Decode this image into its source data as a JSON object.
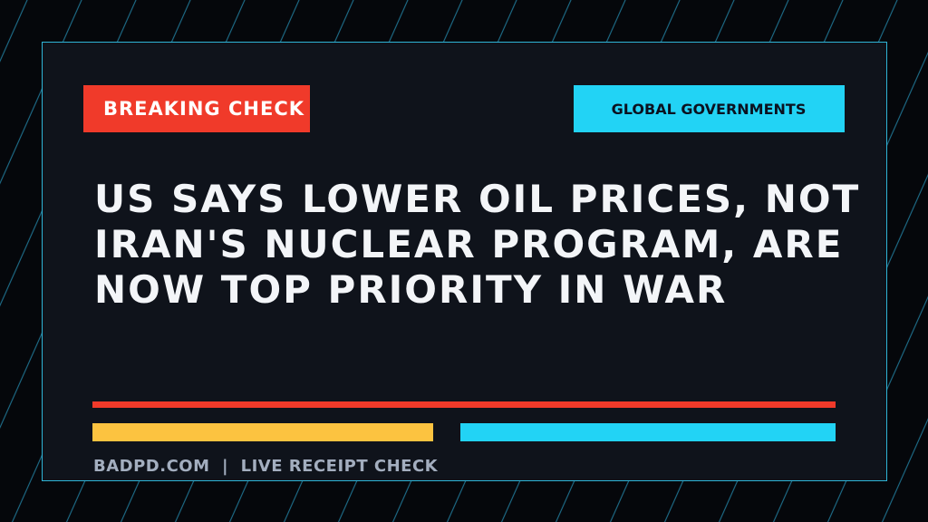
{
  "badges": {
    "left": "BREAKING CHECK",
    "right": "GLOBAL GOVERNMENTS"
  },
  "headline": {
    "lines": [
      "US SAYS LOWER OIL PRICES, NOT",
      "IRAN'S NUCLEAR PROGRAM, ARE",
      "NOW TOP PRIORITY IN WAR"
    ]
  },
  "footer": {
    "text": "BADPD.COM  |  LIVE RECEIPT CHECK"
  }
}
